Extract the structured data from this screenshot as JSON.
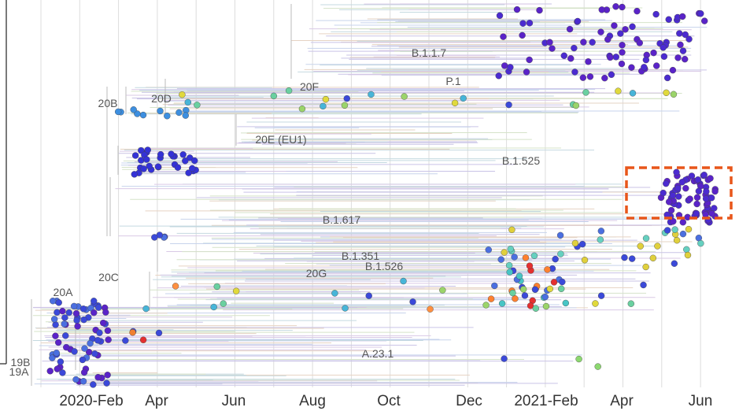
{
  "time_axis": {
    "labels": [
      "2020-Feb",
      "Apr",
      "Jun",
      "Aug",
      "Oct",
      "Dec",
      "2021-Feb",
      "Apr",
      "Jun"
    ]
  },
  "clades": [
    "20B",
    "20D",
    "20F",
    "B.1.1.7",
    "P.1",
    "20E (EU1)",
    "B.1.525",
    "B.1.617",
    "B.1.351",
    "20C",
    "20G",
    "B.1.526",
    "20A",
    "A.23.1",
    "19B",
    "19A"
  ]
}
